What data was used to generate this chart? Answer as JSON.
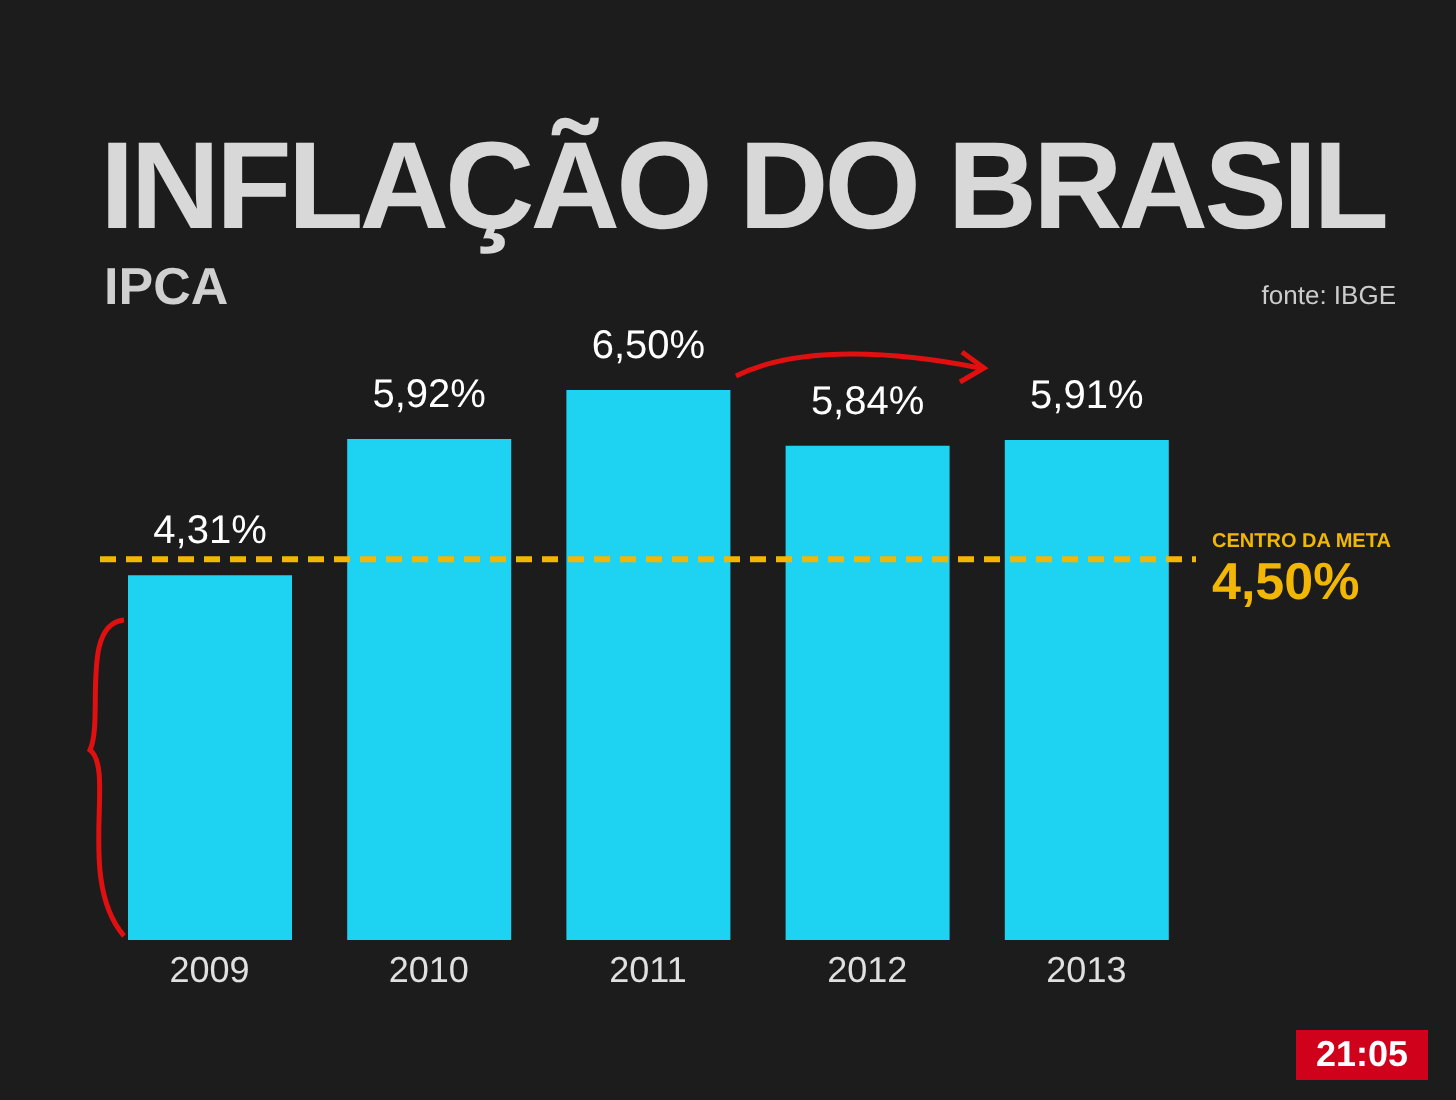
{
  "chart_data": {
    "type": "bar",
    "title": "INFLAÇÃO DO BRASIL",
    "subtitle": "IPCA",
    "annotations": [
      "fonte: IBGE",
      "21:05"
    ],
    "categories": [
      "2009",
      "2010",
      "2011",
      "2012",
      "2013"
    ],
    "values": [
      4.31,
      5.92,
      6.5,
      5.84,
      5.91
    ],
    "value_labels": [
      "4,31%",
      "5,92%",
      "6,50%",
      "5,84%",
      "5,91%"
    ],
    "color": "#1ed2f2",
    "ref_lines": [
      {
        "axis": "y",
        "value": 4.5,
        "label": "CENTRO DA META 4,50%",
        "color": "#f2b705",
        "line_style": "dashed"
      }
    ],
    "grid": false,
    "legend": false
  }
}
